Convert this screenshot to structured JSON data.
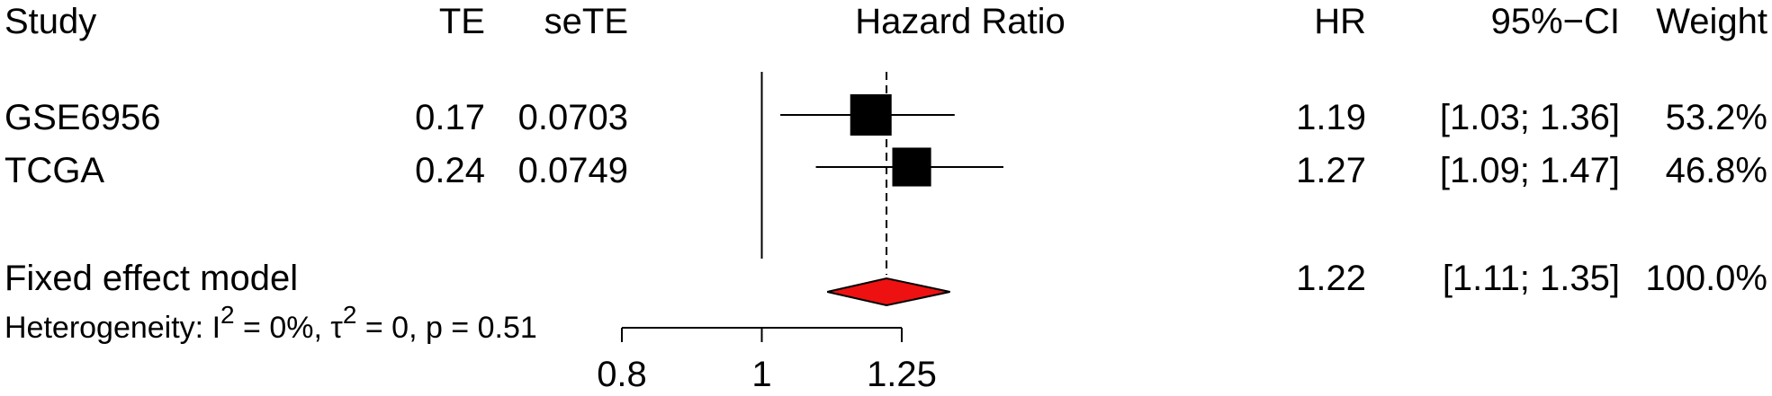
{
  "headers": {
    "study": "Study",
    "te": "TE",
    "sete": "seTE",
    "plot": "Hazard Ratio",
    "hr": "HR",
    "ci": "95%−CI",
    "weight": "Weight"
  },
  "studies": [
    {
      "name": "GSE6956",
      "te": "0.17",
      "sete": "0.0703",
      "hr": "1.19",
      "ci": "[1.03; 1.36]",
      "weight": "53.2%"
    },
    {
      "name": "TCGA",
      "te": "0.24",
      "sete": "0.0749",
      "hr": "1.27",
      "ci": "[1.09; 1.47]",
      "weight": "46.8%"
    }
  ],
  "pooled": {
    "name": "Fixed effect model",
    "hr": "1.22",
    "ci": "[1.11; 1.35]",
    "weight": "100.0%"
  },
  "heterogeneity": {
    "prefix": "Heterogeneity: I",
    "i2_sup": "2",
    "i2_val": " = 0%, ",
    "tau": "τ",
    "tau_sup": "2",
    "rest": " = 0, p = 0.51"
  },
  "colors": {
    "diamond": "#ee1111",
    "marker": "#000000"
  },
  "chart_data": {
    "type": "forest",
    "title": "",
    "xlabel": "Hazard Ratio",
    "x_scale": "log",
    "xlim": [
      0.8,
      1.25
    ],
    "ticks": [
      "0.8",
      "1",
      "1.25"
    ],
    "tick_values": [
      0.8,
      1,
      1.25
    ],
    "reference_line": 1,
    "pooled_line": 1.22,
    "studies": [
      {
        "name": "GSE6956",
        "hr": 1.19,
        "lower": 1.03,
        "upper": 1.36,
        "weight": 53.2
      },
      {
        "name": "TCGA",
        "hr": 1.27,
        "lower": 1.09,
        "upper": 1.47,
        "weight": 46.8
      }
    ],
    "pooled": {
      "name": "Fixed effect model",
      "hr": 1.22,
      "lower": 1.11,
      "upper": 1.35
    }
  }
}
